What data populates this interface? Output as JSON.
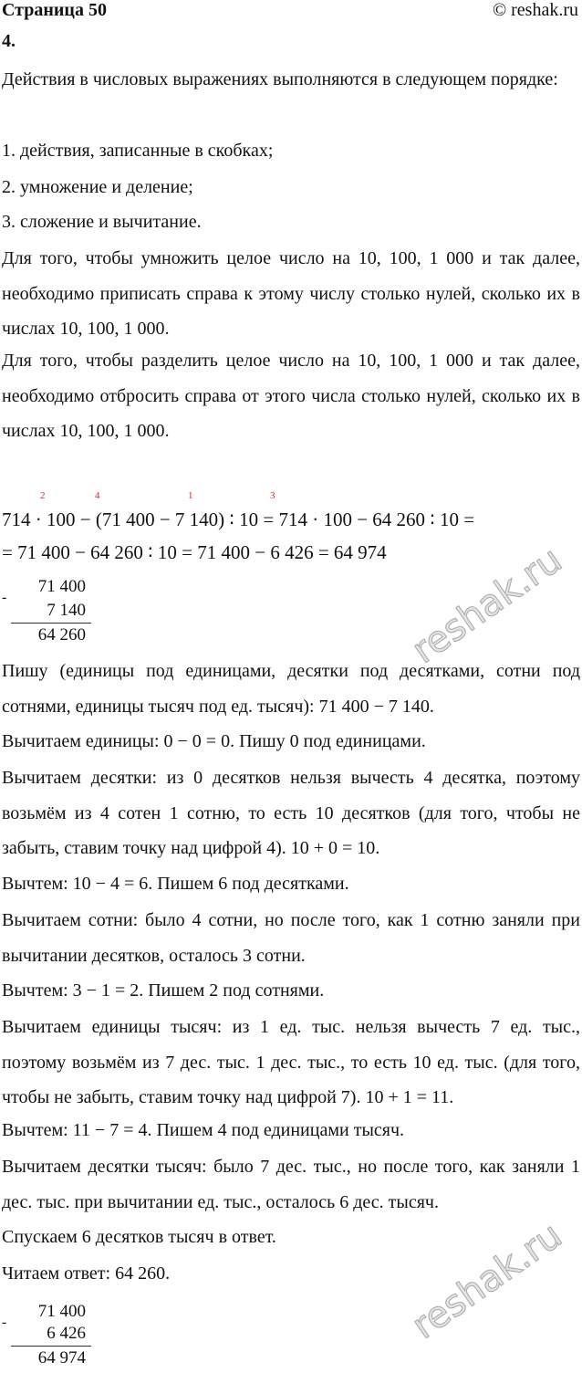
{
  "header": {
    "page": "Страница 50",
    "site": "© reshak.ru"
  },
  "task_number": "4.",
  "paragraphs": {
    "order_intro": "Действия в числовых выражениях выполняются в следующем порядке:",
    "order_1": "1. действия, записанные в скобках;",
    "order_2": "2. умножение и деление;",
    "order_3": "3. сложение и вычитание.",
    "multiply_rule": "Для того, чтобы умножить целое число на 10, 100, 1 000 и так далее, необходимо приписать справа к этому числу столько нулей, сколько их в числах 10, 100, 1 000.",
    "divide_rule": "Для того, чтобы разделить целое число на 10, 100, 1 000 и так далее, необходимо отбросить справа от этого числа столько нулей, сколько их в числах 10, 100, 1 000."
  },
  "equation": {
    "line1": "714 · 100 − (71 400 − 7 140) ∶ 10 = 714 · 100 − 64 260 ∶ 10 =",
    "line2": "= 71 400 − 64 260 ∶ 10 = 71 400 − 6 426 = 64 974",
    "order_marks": [
      "2",
      "4",
      "1",
      "3"
    ],
    "order_color": "#e02020"
  },
  "column1": {
    "sign": "-",
    "minuend": "71 400",
    "subtrahend": "7 140",
    "result": "64 260"
  },
  "explanation": [
    "Пишу (единицы под единицами, десятки под десятками, сотни под сотнями, единицы тысяч под ед. тысяч): 71 400 − 7 140.",
    "Вычитаем единицы: 0 − 0 = 0. Пишу 0 под единицами.",
    "Вычитаем десятки: из 0 десятков нельзя вычесть 4 десятка, поэтому возьмём из 4 сотен 1 сотню, то есть 10 десятков (для того, чтобы не забыть, ставим точку над цифрой 4). 10 + 0 = 10.",
    "Вычтем: 10 − 4 = 6. Пишем 6 под десятками.",
    "Вычитаем сотни: было 4 сотни, но после того, как 1 сотню заняли при вычитании десятков, осталось 3 сотни.",
    "Вычтем: 3 − 1 = 2. Пишем 2 под сотнями.",
    "Вычитаем единицы тысяч: из 1 ед. тыс. нельзя вычесть 7 ед. тыс., поэтому возьмём из 7 дес. тыс. 1 дес. тыс., то есть 10 ед. тыс. (для того, чтобы не забыть, ставим точку над цифрой 7). 10 + 1 = 11.",
    "Вычтем: 11 − 7 = 4. Пишем 4 под единицами тысяч.",
    "Вычитаем десятки тысяч: было 7 дес. тыс., но после того, как заняли 1 дес. тыс. при вычитании ед. тыс., осталось 6 дес. тысяч.",
    "Спускаем 6 десятков тысяч в ответ.",
    "Читаем ответ: 64 260."
  ],
  "column2": {
    "sign": "-",
    "minuend": "71 400",
    "subtrahend": "6 426",
    "result": "64 974"
  },
  "watermark": "reshak.ru"
}
